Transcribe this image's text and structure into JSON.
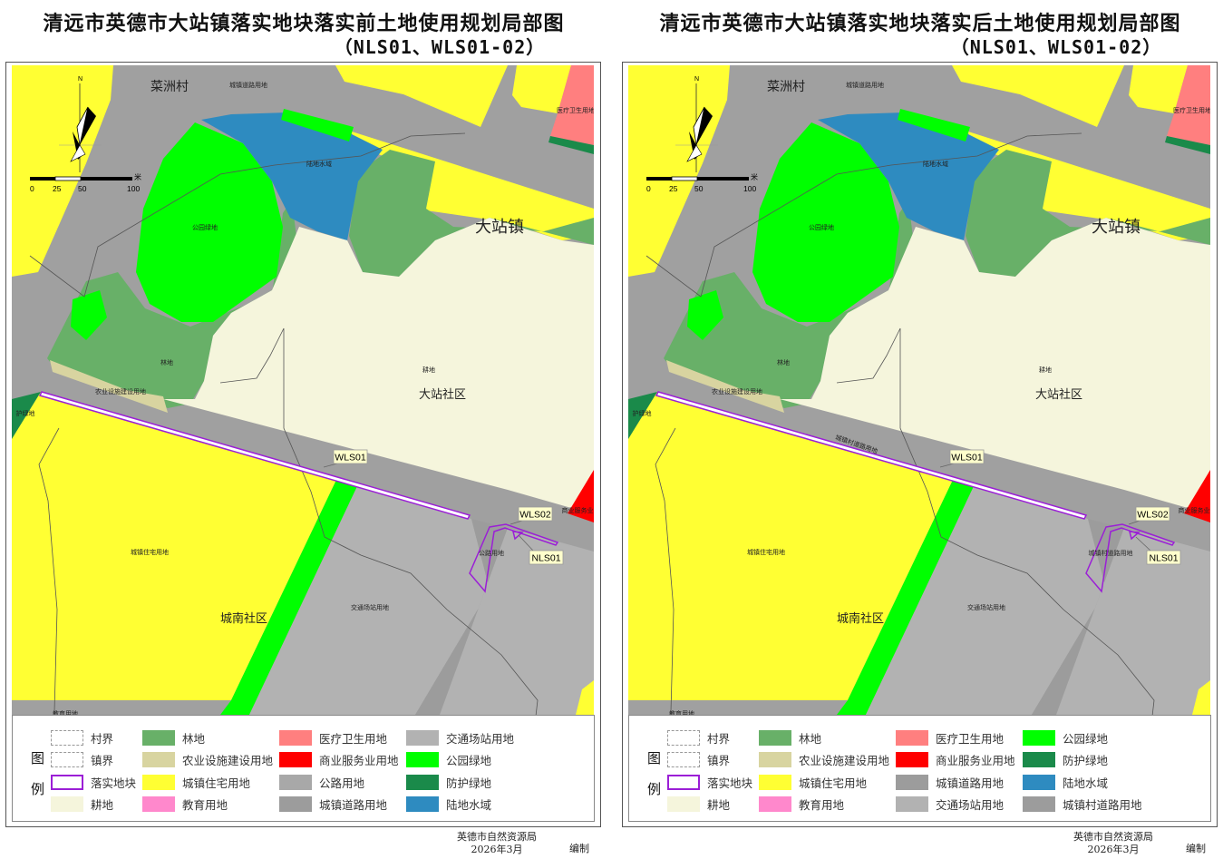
{
  "panels": [
    {
      "title": "清远市英德市大站镇落实地块落实前土地使用规划局部图",
      "subtitle": "（NLS01、WLS01-02）",
      "map_labels": [
        "菜洲村",
        "城镇道路用地",
        "陆地水域",
        "公园绿地",
        "大站镇",
        "林地",
        "耕地",
        "大站社区",
        "农业设施建设用地",
        "护绿地",
        "城镇住宅用地",
        "城南社区",
        "交通场站用地",
        "公路用地",
        "商业服务业",
        "医疗卫生用地",
        "教育用地"
      ],
      "callouts": [
        "WLS01",
        "WLS02",
        "NLS01"
      ],
      "strip_colors": {
        "lower_left": "#B2B2B2",
        "road_strip": "#9C9C9C",
        "lower_right": "#B2B2B2"
      },
      "legend": {
        "title_chars": [
          "图",
          "例"
        ],
        "items": [
          {
            "label": "村界",
            "kind": "dash"
          },
          {
            "label": "镇界",
            "kind": "dash"
          },
          {
            "label": "落实地块",
            "kind": "plot",
            "color": "#9B1FD6"
          },
          {
            "label": "耕地",
            "color": "#F5F5DC"
          },
          {
            "label": "林地",
            "color": "#68B068"
          },
          {
            "label": "农业设施建设用地",
            "color": "#D8D4A0"
          },
          {
            "label": "城镇住宅用地",
            "color": "#FFFF33"
          },
          {
            "label": "教育用地",
            "color": "#FF88CC"
          },
          {
            "label": "医疗卫生用地",
            "color": "#FF7F7F"
          },
          {
            "label": "商业服务业用地",
            "color": "#FF0000"
          },
          {
            "label": "公路用地",
            "color": "#A8A8A8"
          },
          {
            "label": "城镇道路用地",
            "color": "#9C9C9C"
          },
          {
            "label": "交通场站用地",
            "color": "#B2B2B2"
          },
          {
            "label": "公园绿地",
            "color": "#00FF00"
          },
          {
            "label": "防护绿地",
            "color": "#1A8A4A"
          },
          {
            "label": "陆地水域",
            "color": "#2E8BC0"
          }
        ]
      },
      "footer": {
        "org": "英德市自然资源局",
        "date": "2026年3月",
        "compiled": "编制"
      }
    },
    {
      "title": "清远市英德市大站镇落实地块落实后土地使用规划局部图",
      "subtitle": "（NLS01、WLS01-02）",
      "map_labels": [
        "菜洲村",
        "城镇道路用地",
        "陆地水域",
        "公园绿地",
        "大站镇",
        "林地",
        "耕地",
        "大站社区",
        "农业设施建设用地",
        "护绿地",
        "城镇住宅用地",
        "城南社区",
        "交通场站用地",
        "城镇村道路用地",
        "商业服务业",
        "医疗卫生用地",
        "教育用地",
        "城镇村道路用地"
      ],
      "callouts": [
        "WLS01",
        "WLS02",
        "NLS01"
      ],
      "strip_colors": {
        "lower_left": "#B2B2B2",
        "road_strip": "#9C9C9C",
        "lower_right": "#B2B2B2"
      },
      "legend": {
        "title_chars": [
          "图",
          "例"
        ],
        "items": [
          {
            "label": "村界",
            "kind": "dash"
          },
          {
            "label": "镇界",
            "kind": "dash"
          },
          {
            "label": "落实地块",
            "kind": "plot",
            "color": "#9B1FD6"
          },
          {
            "label": "耕地",
            "color": "#F5F5DC"
          },
          {
            "label": "林地",
            "color": "#68B068"
          },
          {
            "label": "农业设施建设用地",
            "color": "#D8D4A0"
          },
          {
            "label": "城镇住宅用地",
            "color": "#FFFF33"
          },
          {
            "label": "教育用地",
            "color": "#FF88CC"
          },
          {
            "label": "医疗卫生用地",
            "color": "#FF7F7F"
          },
          {
            "label": "商业服务业用地",
            "color": "#FF0000"
          },
          {
            "label": "城镇道路用地",
            "color": "#9C9C9C"
          },
          {
            "label": "交通场站用地",
            "color": "#B2B2B2"
          },
          {
            "label": "公园绿地",
            "color": "#00FF00"
          },
          {
            "label": "防护绿地",
            "color": "#1A8A4A"
          },
          {
            "label": "陆地水域",
            "color": "#2E8BC0"
          },
          {
            "label": "城镇村道路用地",
            "color": "#9C9C9C"
          }
        ]
      },
      "footer": {
        "org": "英德市自然资源局",
        "date": "2026年3月",
        "compiled": "编制"
      }
    }
  ],
  "compass": {
    "north_label": "N"
  },
  "scale_bar": {
    "ticks": [
      "0",
      "25",
      "50",
      "100"
    ],
    "unit": "米"
  },
  "colors": {
    "road": "#A0A0A0",
    "residential": "#FFFF33",
    "water": "#2E8BC0",
    "park": "#00FF00",
    "forest": "#68B068",
    "farmland": "#F5F5DC",
    "agri": "#D8D4A0",
    "medical": "#FF7F7F",
    "commercial": "#FF0000",
    "protective": "#1A8A4A",
    "plot": "#9B1FD6"
  }
}
